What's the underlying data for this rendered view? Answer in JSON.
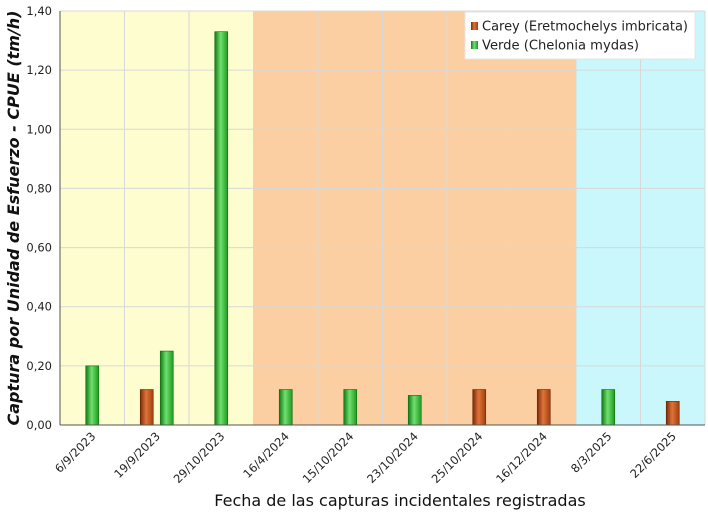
{
  "chart_data": {
    "type": "bar",
    "title": "",
    "xlabel": "Fecha de las capturas incidentales registradas",
    "ylabel": "Captura por Unidad de Esfuerzo - CPUE (tm/h)",
    "ylim": [
      0,
      1.4
    ],
    "yticks": [
      "0,00",
      "0,20",
      "0,40",
      "0,60",
      "0,80",
      "1,00",
      "1,20",
      "1,40"
    ],
    "grid": true,
    "legend_position": "top-right",
    "categories": [
      "6/9/2023",
      "19/9/2023",
      "29/10/2023",
      "16/4/2024",
      "15/10/2024",
      "23/10/2024",
      "25/10/2024",
      "16/12/2024",
      "8/3/2025",
      "22/6/2025"
    ],
    "series": [
      {
        "name": "Carey (Eretmochelys imbricata)",
        "color": "#b5470f",
        "values": [
          null,
          0.12,
          null,
          null,
          null,
          null,
          0.12,
          0.12,
          null,
          0.08
        ]
      },
      {
        "name": "Verde (Chelonia mydas)",
        "color": "#2aa82a",
        "values": [
          0.2,
          0.25,
          1.33,
          0.12,
          0.12,
          0.1,
          null,
          null,
          0.12,
          null
        ]
      }
    ],
    "background_periods": [
      {
        "from_index": 0,
        "to_index": 2,
        "color": "#fdfdcf"
      },
      {
        "from_index": 3,
        "to_index": 7,
        "color": "#fbcfa2"
      },
      {
        "from_index": 8,
        "to_index": 9,
        "color": "#c9f7fb"
      }
    ]
  }
}
